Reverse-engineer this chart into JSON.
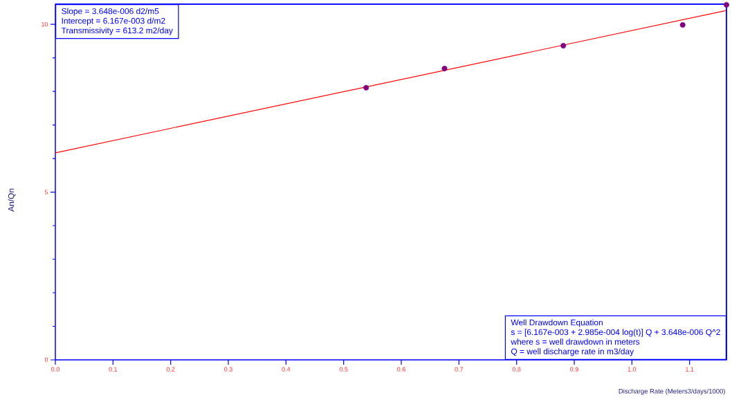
{
  "chart_data": {
    "type": "scatter",
    "xlabel": "Discharge Rate (Meters3/days/1000)",
    "ylabel": "An/Qn",
    "xlim": [
      0,
      1.164
    ],
    "ylim": [
      0,
      10.6
    ],
    "xticks": [
      {
        "value": 0,
        "label": "0.0"
      },
      0.1,
      0.2,
      0.3,
      0.4,
      0.5,
      0.6,
      0.7,
      0.8,
      0.9,
      {
        "value": 1.0,
        "label": "1.0"
      },
      1.1
    ],
    "yticks": [
      0,
      {
        "value": 1,
        "label": null
      },
      {
        "value": 2,
        "label": null
      },
      {
        "value": 3,
        "label": null
      },
      {
        "value": 4,
        "label": null
      },
      5,
      {
        "value": 6,
        "label": null
      },
      {
        "value": 7,
        "label": null
      },
      {
        "value": 8,
        "label": null
      },
      {
        "value": 9,
        "label": null
      },
      10
    ],
    "annotations": [
      "Slope = 3.648e-006 d2/m5",
      "Intercept = 6.167e-003 d/m2",
      "Transmissivity = 613.2 m2/day",
      "Well Drawdown Equation",
      "s = [6.167e-003 + 2.985e-004 log(t)] Q + 3.648e-006 Q^2",
      "where s = well drawdown in meters",
      "Q = well discharge rate in m3/day"
    ],
    "series": [
      {
        "type": "line",
        "color": "#ff0000",
        "marker": "none",
        "x": [
          0,
          1.164
        ],
        "values": [
          6.17,
          10.41
        ]
      },
      {
        "color": "#800080",
        "marker": "circle",
        "x": [
          0.539,
          0.675,
          0.881,
          1.088,
          1.164
        ],
        "values": [
          8.11,
          8.68,
          9.36,
          9.98,
          10.58
        ]
      }
    ]
  }
}
